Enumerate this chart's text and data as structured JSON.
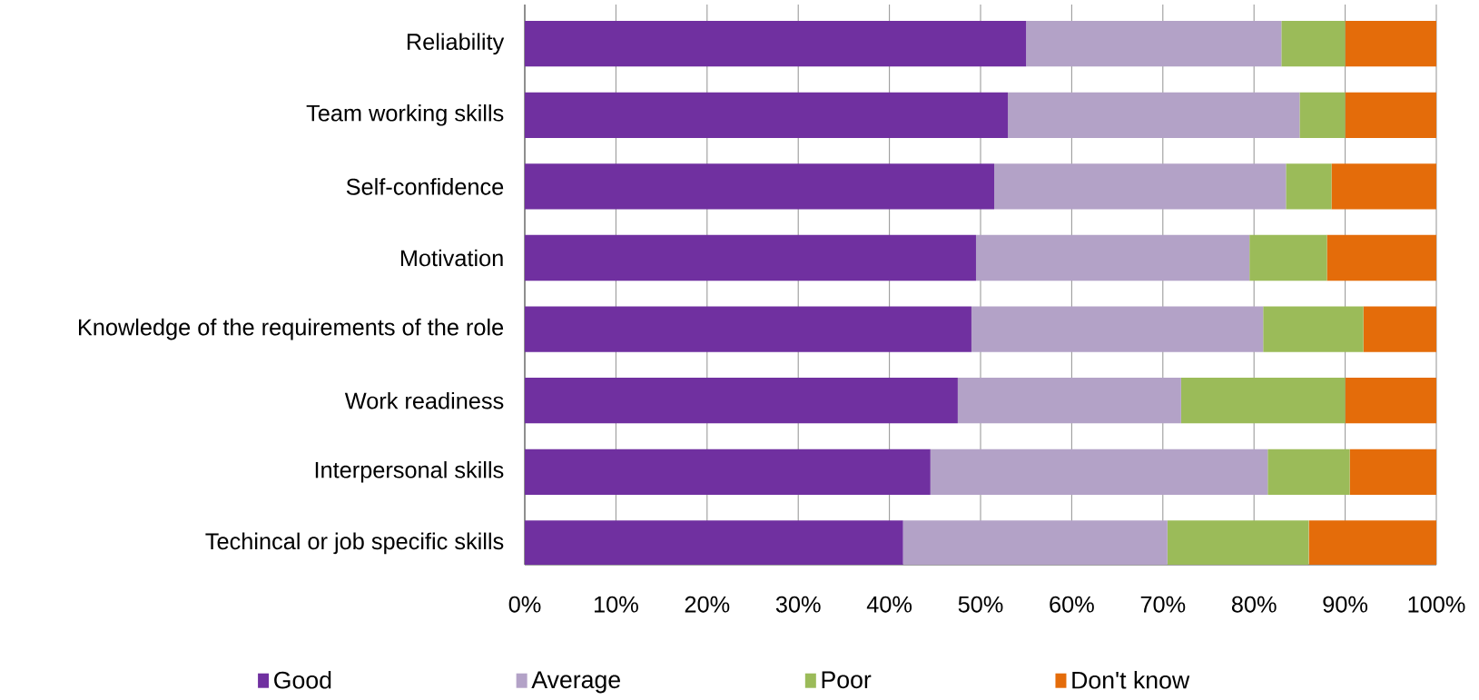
{
  "chart_data": {
    "type": "bar",
    "orientation": "horizontal",
    "stacked": true,
    "categories": [
      "Reliability",
      "Team working skills",
      "Self-confidence",
      "Motivation",
      "Knowledge of the requirements of the role",
      "Work readiness",
      "Interpersonal skills",
      "Techincal or job specific skills"
    ],
    "series": [
      {
        "name": "Good",
        "color": "#7030a0",
        "values": [
          55,
          53,
          51.5,
          49.5,
          49,
          47.5,
          44.5,
          41.5
        ]
      },
      {
        "name": "Average",
        "color": "#b3a2c7",
        "values": [
          28,
          32,
          32,
          30,
          32,
          24.5,
          37,
          29
        ]
      },
      {
        "name": "Poor",
        "color": "#9bbb59",
        "values": [
          7,
          5,
          5,
          8.5,
          11,
          18,
          9,
          15.5
        ]
      },
      {
        "name": "Don't know",
        "color": "#e46c0a",
        "values": [
          10,
          10,
          11.5,
          12,
          8,
          10,
          9.5,
          14
        ]
      }
    ],
    "xlim": [
      0,
      100
    ],
    "xticks": [
      {
        "value": 0,
        "label": "0%"
      },
      {
        "value": 10,
        "label": "10%"
      },
      {
        "value": 20,
        "label": "20%"
      },
      {
        "value": 30,
        "label": "30%"
      },
      {
        "value": 40,
        "label": "40%"
      },
      {
        "value": 50,
        "label": "50%"
      },
      {
        "value": 60,
        "label": "60%"
      },
      {
        "value": 70,
        "label": "70%"
      },
      {
        "value": 80,
        "label": "80%"
      },
      {
        "value": 90,
        "label": "90%"
      },
      {
        "value": 100,
        "label": "100%"
      }
    ],
    "grid": "x",
    "legend": "bottom"
  }
}
